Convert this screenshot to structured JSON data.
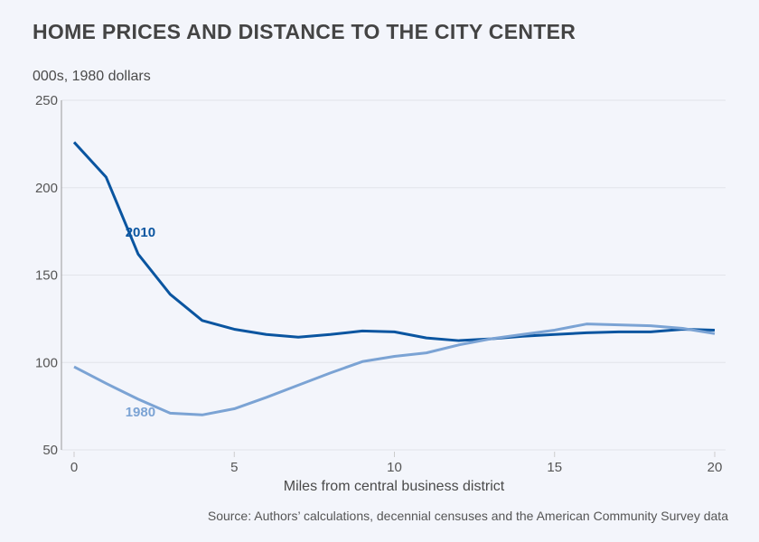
{
  "chart_data": {
    "type": "line",
    "title": "HOME PRICES AND DISTANCE TO THE CITY CENTER",
    "ylabel": "000s, 1980 dollars",
    "xlabel": "Miles from central business district",
    "source": "Source: Authors’ calculations, decennial censuses and the American Community Survey data",
    "xlim": [
      0,
      20
    ],
    "ylim": [
      50,
      250
    ],
    "xticks": [
      0,
      5,
      10,
      15,
      20
    ],
    "yticks": [
      50,
      100,
      150,
      200,
      250
    ],
    "grid": true,
    "x": [
      0,
      1,
      2,
      3,
      4,
      5,
      6,
      7,
      8,
      9,
      10,
      11,
      12,
      13,
      14,
      15,
      16,
      17,
      18,
      19,
      20
    ],
    "series": [
      {
        "name": "2010",
        "color": "#0a55a0",
        "label_position": {
          "x": 1.6,
          "y": 172
        },
        "values": [
          226,
          206,
          162,
          139,
          124,
          119,
          116,
          114.5,
          116,
          118,
          117.5,
          114,
          112.5,
          113.5,
          115,
          116,
          117,
          117.5,
          117.5,
          119,
          118.5
        ]
      },
      {
        "name": "1980",
        "color": "#7ba3d4",
        "label_position": {
          "x": 1.6,
          "y": 69
        },
        "values": [
          97.5,
          88,
          79,
          71,
          70,
          73.5,
          80,
          87,
          94,
          100.5,
          103.5,
          105.5,
          110,
          113.5,
          116,
          118.5,
          122,
          121.5,
          121,
          119.5,
          116.5
        ]
      }
    ]
  }
}
